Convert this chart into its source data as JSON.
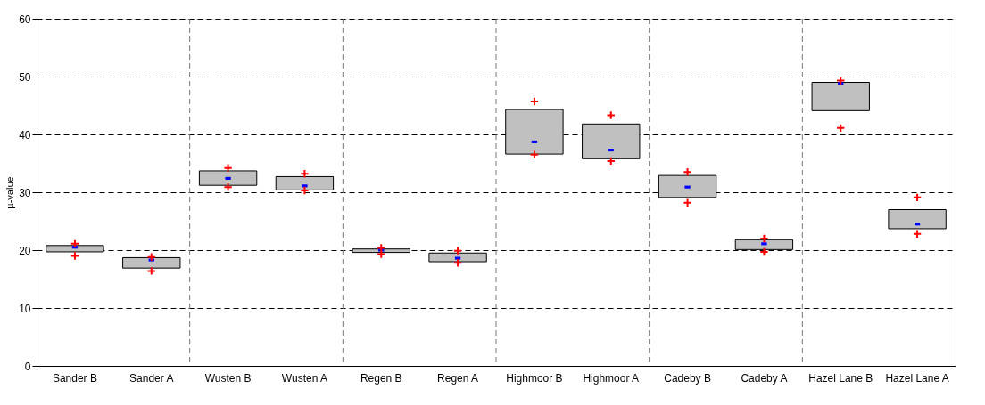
{
  "chart_data": {
    "type": "bar",
    "ylabel": "µ-value",
    "categories": [
      "Sander B",
      "Sander A",
      "Wusten B",
      "Wusten A",
      "Regen B",
      "Regen A",
      "Highmoor B",
      "Highmoor A",
      "Cadeby B",
      "Cadeby A",
      "Hazel Lane B",
      "Hazel Lane A"
    ],
    "series": [
      {
        "color": "#c0c0c0",
        "base": [
          19.7,
          16.9,
          31.2,
          30.4,
          19.6,
          18.0,
          36.6,
          35.8,
          29.1,
          20.1,
          44.1,
          23.7
        ],
        "values": [
          1.1,
          1.8,
          2.5,
          2.3,
          0.6,
          1.5,
          7.7,
          6.0,
          3.8,
          1.7,
          4.9,
          3.3
        ]
      },
      {
        "type": "scatter",
        "marker": "square",
        "color": "#0000ff",
        "x": [
          "Sander B",
          "Sander A",
          "Wusten B",
          "Wusten A",
          "Regen B",
          "Regen A",
          "Highmoor B",
          "Highmoor A",
          "Cadeby B",
          "Cadeby A",
          "Hazel Lane B",
          "Hazel Lane A"
        ],
        "values": [
          20.5,
          18.3,
          32.4,
          31.1,
          20.0,
          18.6,
          38.7,
          37.3,
          30.9,
          21.1,
          48.8,
          24.5
        ]
      },
      {
        "type": "scatter",
        "marker": "cross",
        "color": "#ff0000",
        "x": [
          "Sander B",
          "Sander A",
          "Wusten B",
          "Wusten A",
          "Regen B",
          "Regen A",
          "Highmoor B",
          "Highmoor A",
          "Cadeby B",
          "Cadeby A",
          "Hazel Lane B",
          "Hazel Lane A"
        ],
        "values": [
          21.1,
          18.8,
          34.2,
          33.2,
          20.4,
          19.9,
          45.7,
          43.3,
          33.5,
          22.0,
          49.3,
          29.1
        ]
      },
      {
        "type": "scatter",
        "marker": "cross",
        "color": "#ff0000",
        "x": [
          "Sander B",
          "Sander A",
          "Wusten B",
          "Wusten A",
          "Regen B",
          "Regen A",
          "Highmoor B",
          "Highmoor A",
          "Cadeby B",
          "Cadeby A",
          "Hazel Lane B",
          "Hazel Lane A"
        ],
        "values": [
          19.0,
          16.4,
          30.9,
          30.3,
          19.3,
          17.8,
          36.5,
          35.4,
          28.2,
          19.7,
          41.1,
          22.8
        ]
      }
    ],
    "ylim": [
      0,
      60
    ],
    "yticks": [
      0,
      10,
      20,
      30,
      40,
      50,
      60
    ],
    "grid": true
  }
}
